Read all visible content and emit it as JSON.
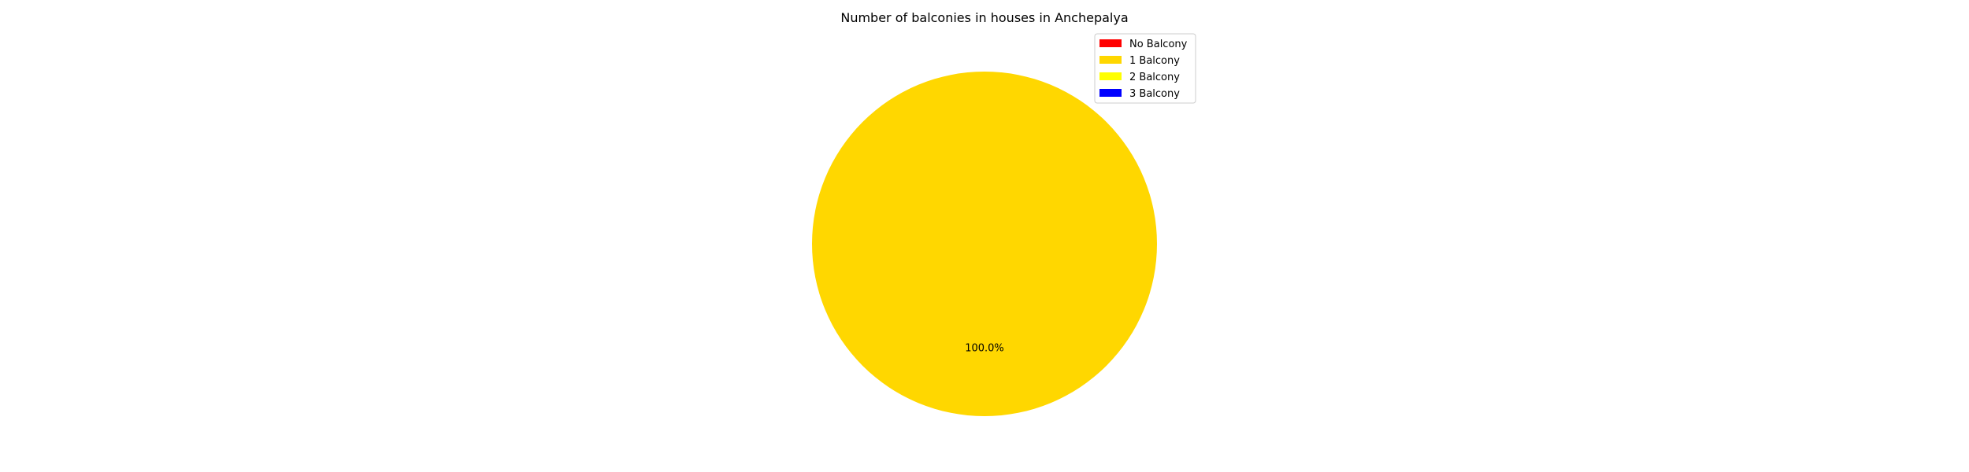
{
  "chart_data": {
    "type": "pie",
    "title": "Number of balconies in houses in Anchepalya",
    "categories": [
      "No Balcony",
      "1 Balcony",
      "2 Balcony",
      "3 Balcony"
    ],
    "values": [
      0,
      100,
      0,
      0
    ],
    "colors": [
      "#ff0000",
      "#ffd700",
      "#ffff00",
      "#0000ff"
    ],
    "slice_labels": [
      "100.0%"
    ],
    "legend": {
      "placement": "top-right",
      "entries": [
        "No Balcony",
        "1 Balcony",
        "2 Balcony",
        "3 Balcony"
      ]
    }
  }
}
